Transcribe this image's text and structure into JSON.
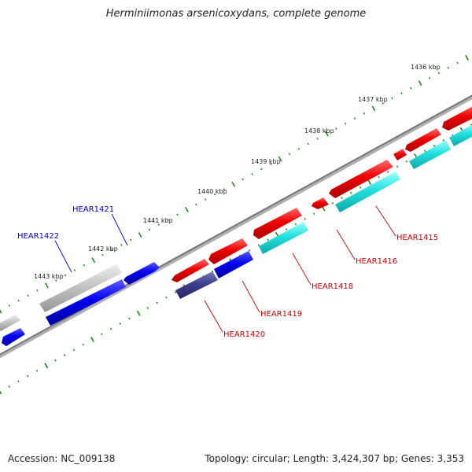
{
  "title": "Herminiimonas arsenicoxydans, complete genome",
  "footer": {
    "accession": "Accession: NC_009138",
    "summary": "Topology: circular; Length: 3,424,307 bp; Genes: 3,353"
  },
  "ticks": [
    "1436 kbp",
    "1437 kbp",
    "1438 kbp",
    "1439 kbp",
    "1440 kbp",
    "1441 kbp",
    "1442 kbp",
    "1443 kbp"
  ],
  "labels": [
    {
      "id": "HEAR1421",
      "text": "HEAR1421",
      "color": "#0000cc"
    },
    {
      "id": "HEAR1422",
      "text": "HEAR1422",
      "color": "#0000cc"
    },
    {
      "id": "HEAR1415",
      "text": "HEAR1415",
      "color": "#cc0000"
    },
    {
      "id": "HEAR1416",
      "text": "HEAR1416",
      "color": "#cc0000"
    },
    {
      "id": "HEAR1418",
      "text": "HEAR1418",
      "color": "#cc0000"
    },
    {
      "id": "HEAR1419",
      "text": "HEAR1419",
      "color": "#cc0000"
    },
    {
      "id": "HEAR1420",
      "text": "HEAR1420",
      "color": "#cc0000"
    }
  ],
  "colors": {
    "backbone": "#7a7a7a",
    "tick": "#1a8a1a",
    "forward": "#ee0000",
    "reverse": "#0000ee",
    "cyan": "#11dddd",
    "gray": "#bbbbbb",
    "navy": "#3a3a8a"
  }
}
